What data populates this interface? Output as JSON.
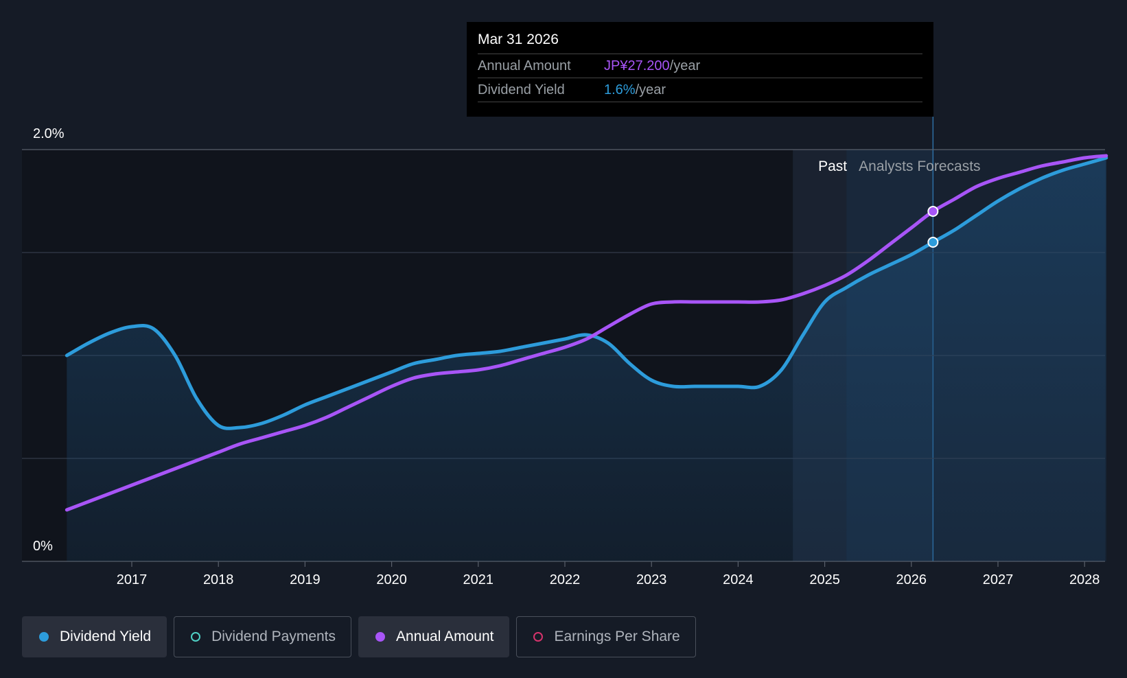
{
  "tooltip": {
    "date": "Mar 31 2026",
    "rows": [
      {
        "label": "Annual Amount",
        "value": "JP¥27.200",
        "unit": "/year"
      },
      {
        "label": "Dividend Yield",
        "value": "1.6%",
        "unit": "/year"
      }
    ]
  },
  "zones": {
    "past": "Past",
    "forecast": "Analysts Forecasts"
  },
  "legend": [
    {
      "label": "Dividend Yield",
      "color": "#2d9cdb",
      "active": true
    },
    {
      "label": "Dividend Payments",
      "color": "#4fd1c5",
      "active": false
    },
    {
      "label": "Annual Amount",
      "color": "#a855f7",
      "active": true
    },
    {
      "label": "Earnings Per Share",
      "color": "#d6336c",
      "active": false
    }
  ],
  "chart_data": {
    "type": "line",
    "title": "",
    "xlabel": "",
    "ylabel": "",
    "x_ticks": [
      "2017",
      "2018",
      "2019",
      "2020",
      "2021",
      "2022",
      "2023",
      "2024",
      "2025",
      "2026",
      "2027",
      "2028"
    ],
    "y_tick_labels": [
      "0%",
      "2.0%"
    ],
    "ylim": [
      0,
      2.0
    ],
    "xlim": [
      2016.25,
      2028.25
    ],
    "past_forecast_boundary": 2025.25,
    "highlight_x": 2026.25,
    "series": [
      {
        "name": "Dividend Yield",
        "unit": "%",
        "color": "#2d9cdb",
        "points": [
          [
            2016.25,
            1.0
          ],
          [
            2016.5,
            1.06
          ],
          [
            2016.75,
            1.11
          ],
          [
            2017.0,
            1.14
          ],
          [
            2017.25,
            1.13
          ],
          [
            2017.5,
            1.0
          ],
          [
            2017.75,
            0.79
          ],
          [
            2018.0,
            0.66
          ],
          [
            2018.25,
            0.65
          ],
          [
            2018.5,
            0.67
          ],
          [
            2018.75,
            0.71
          ],
          [
            2019.0,
            0.76
          ],
          [
            2019.25,
            0.8
          ],
          [
            2019.5,
            0.84
          ],
          [
            2019.75,
            0.88
          ],
          [
            2020.0,
            0.92
          ],
          [
            2020.25,
            0.96
          ],
          [
            2020.5,
            0.98
          ],
          [
            2020.75,
            1.0
          ],
          [
            2021.0,
            1.01
          ],
          [
            2021.25,
            1.02
          ],
          [
            2021.5,
            1.04
          ],
          [
            2021.75,
            1.06
          ],
          [
            2022.0,
            1.08
          ],
          [
            2022.25,
            1.1
          ],
          [
            2022.5,
            1.06
          ],
          [
            2022.75,
            0.96
          ],
          [
            2023.0,
            0.88
          ],
          [
            2023.25,
            0.85
          ],
          [
            2023.5,
            0.85
          ],
          [
            2023.75,
            0.85
          ],
          [
            2024.0,
            0.85
          ],
          [
            2024.25,
            0.85
          ],
          [
            2024.5,
            0.93
          ],
          [
            2024.75,
            1.1
          ],
          [
            2025.0,
            1.26
          ],
          [
            2025.25,
            1.33
          ],
          [
            2025.5,
            1.39
          ],
          [
            2025.75,
            1.44
          ],
          [
            2026.0,
            1.49
          ],
          [
            2026.25,
            1.55
          ],
          [
            2026.5,
            1.61
          ],
          [
            2026.75,
            1.68
          ],
          [
            2027.0,
            1.75
          ],
          [
            2027.25,
            1.81
          ],
          [
            2027.5,
            1.86
          ],
          [
            2027.75,
            1.9
          ],
          [
            2028.0,
            1.93
          ],
          [
            2028.25,
            1.96
          ]
        ]
      },
      {
        "name": "Annual Amount",
        "unit": "JP¥",
        "color": "#a855f7",
        "points": [
          [
            2016.25,
            0.25
          ],
          [
            2016.5,
            0.29
          ],
          [
            2016.75,
            0.33
          ],
          [
            2017.0,
            0.37
          ],
          [
            2017.25,
            0.41
          ],
          [
            2017.5,
            0.45
          ],
          [
            2017.75,
            0.49
          ],
          [
            2018.0,
            0.53
          ],
          [
            2018.25,
            0.57
          ],
          [
            2018.5,
            0.6
          ],
          [
            2018.75,
            0.63
          ],
          [
            2019.0,
            0.66
          ],
          [
            2019.25,
            0.7
          ],
          [
            2019.5,
            0.75
          ],
          [
            2019.75,
            0.8
          ],
          [
            2020.0,
            0.85
          ],
          [
            2020.25,
            0.89
          ],
          [
            2020.5,
            0.91
          ],
          [
            2020.75,
            0.92
          ],
          [
            2021.0,
            0.93
          ],
          [
            2021.25,
            0.95
          ],
          [
            2021.5,
            0.98
          ],
          [
            2021.75,
            1.01
          ],
          [
            2022.0,
            1.04
          ],
          [
            2022.25,
            1.08
          ],
          [
            2022.5,
            1.14
          ],
          [
            2022.75,
            1.2
          ],
          [
            2023.0,
            1.25
          ],
          [
            2023.25,
            1.26
          ],
          [
            2023.5,
            1.26
          ],
          [
            2023.75,
            1.26
          ],
          [
            2024.0,
            1.26
          ],
          [
            2024.25,
            1.26
          ],
          [
            2024.5,
            1.27
          ],
          [
            2024.75,
            1.3
          ],
          [
            2025.0,
            1.34
          ],
          [
            2025.25,
            1.39
          ],
          [
            2025.5,
            1.46
          ],
          [
            2025.75,
            1.54
          ],
          [
            2026.0,
            1.62
          ],
          [
            2026.25,
            1.7
          ],
          [
            2026.5,
            1.76
          ],
          [
            2026.75,
            1.82
          ],
          [
            2027.0,
            1.86
          ],
          [
            2027.25,
            1.89
          ],
          [
            2027.5,
            1.92
          ],
          [
            2027.75,
            1.94
          ],
          [
            2028.0,
            1.96
          ],
          [
            2028.25,
            1.97
          ]
        ]
      }
    ]
  }
}
